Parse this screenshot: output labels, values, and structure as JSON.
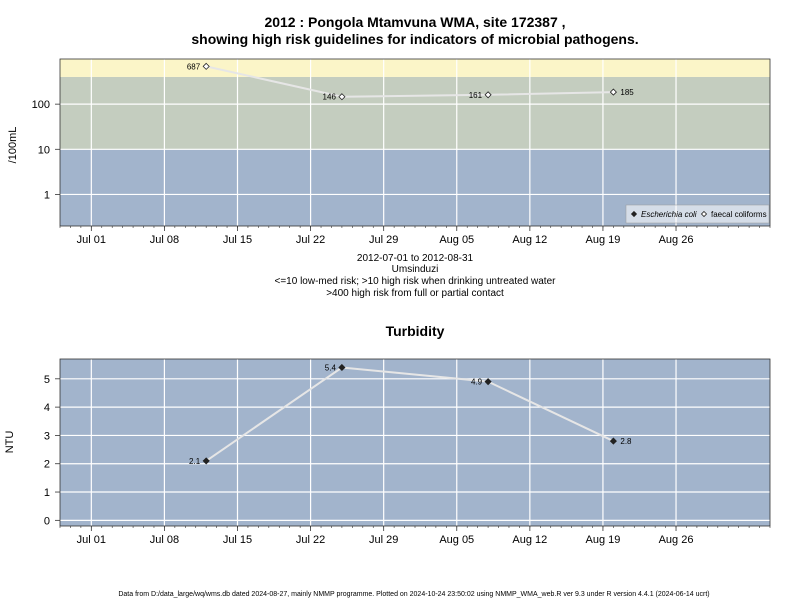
{
  "chart_data": [
    {
      "type": "line",
      "title_line1": "2012 : Pongola Mtamvuna WMA, site 172387 ,",
      "title_line2": "showing high risk guidelines for indicators of microbial pathogens.",
      "ylabel": "/100mL",
      "y_scale": "log",
      "ylim": [
        0.2,
        1000
      ],
      "yticks": [
        1,
        10,
        100
      ],
      "ytick_labels": [
        "1",
        "10",
        "100"
      ],
      "x_axis": {
        "start": "2012-06-28",
        "end": "2012-09-04",
        "ticks": [
          "2012-07-01",
          "2012-07-08",
          "2012-07-15",
          "2012-07-22",
          "2012-07-29",
          "2012-08-05",
          "2012-08-12",
          "2012-08-19",
          "2012-08-26"
        ],
        "tick_labels": [
          "Jul 01",
          "Jul 08",
          "Jul 15",
          "Jul 22",
          "Jul 29",
          "Aug 05",
          "Aug 12",
          "Aug 19",
          "Aug 26"
        ]
      },
      "bands": [
        {
          "from": 0.2,
          "to": 10,
          "color": "#a2b4cc"
        },
        {
          "from": 10,
          "to": 400,
          "color": "#c4cdbf"
        },
        {
          "from": 400,
          "to": 1000,
          "color": "#fbf5c8"
        }
      ],
      "series": [
        {
          "name": "faecal coliforms",
          "marker": "open-diamond",
          "points": [
            {
              "x": "2012-07-12",
              "y": 687,
              "label": "687"
            },
            {
              "x": "2012-07-25",
              "y": 146,
              "label": "146"
            },
            {
              "x": "2012-08-08",
              "y": 161,
              "label": "161"
            },
            {
              "x": "2012-08-20",
              "y": 185,
              "label": "185"
            }
          ]
        }
      ],
      "legend": {
        "placement": "bottom-right",
        "items": [
          {
            "label": "Escherichia coli",
            "marker": "filled-diamond",
            "italic": true
          },
          {
            "label": "faecal coliforms",
            "marker": "open-diamond",
            "italic": false
          }
        ]
      },
      "caption_lines": [
        "2012-07-01 to 2012-08-31",
        "Umsinduzi",
        "<=10 low-med risk; >10 high risk when drinking untreated water",
        ">400 high risk from full or partial contact"
      ],
      "grid": true
    },
    {
      "type": "line",
      "title": "Turbidity",
      "ylabel": "NTU",
      "ylim": [
        -0.2,
        5.7
      ],
      "yticks": [
        0,
        1,
        2,
        3,
        4,
        5
      ],
      "ytick_labels": [
        "0",
        "1",
        "2",
        "3",
        "4",
        "5"
      ],
      "x_axis": {
        "start": "2012-06-28",
        "end": "2012-09-04",
        "ticks": [
          "2012-07-01",
          "2012-07-08",
          "2012-07-15",
          "2012-07-22",
          "2012-07-29",
          "2012-08-05",
          "2012-08-12",
          "2012-08-19",
          "2012-08-26"
        ],
        "tick_labels": [
          "Jul 01",
          "Jul 08",
          "Jul 15",
          "Jul 22",
          "Jul 29",
          "Aug 05",
          "Aug 12",
          "Aug 19",
          "Aug 26"
        ]
      },
      "background": "#a2b4cc",
      "series": [
        {
          "marker": "filled-diamond",
          "points": [
            {
              "x": "2012-07-12",
              "y": 2.1,
              "label": "2.1"
            },
            {
              "x": "2012-07-25",
              "y": 5.4,
              "label": "5.4"
            },
            {
              "x": "2012-08-08",
              "y": 4.9,
              "label": "4.9"
            },
            {
              "x": "2012-08-20",
              "y": 2.8,
              "label": "2.8"
            }
          ]
        }
      ],
      "grid": true
    }
  ],
  "footer": "Data from D:/data_large/wq/wms.db dated 2024-08-27, mainly NMMP programme. Plotted on 2024-10-24 23:50:02 using NMMP_WMA_web.R ver 9.3 under R version 4.4.1 (2024-06-14 ucrt)"
}
